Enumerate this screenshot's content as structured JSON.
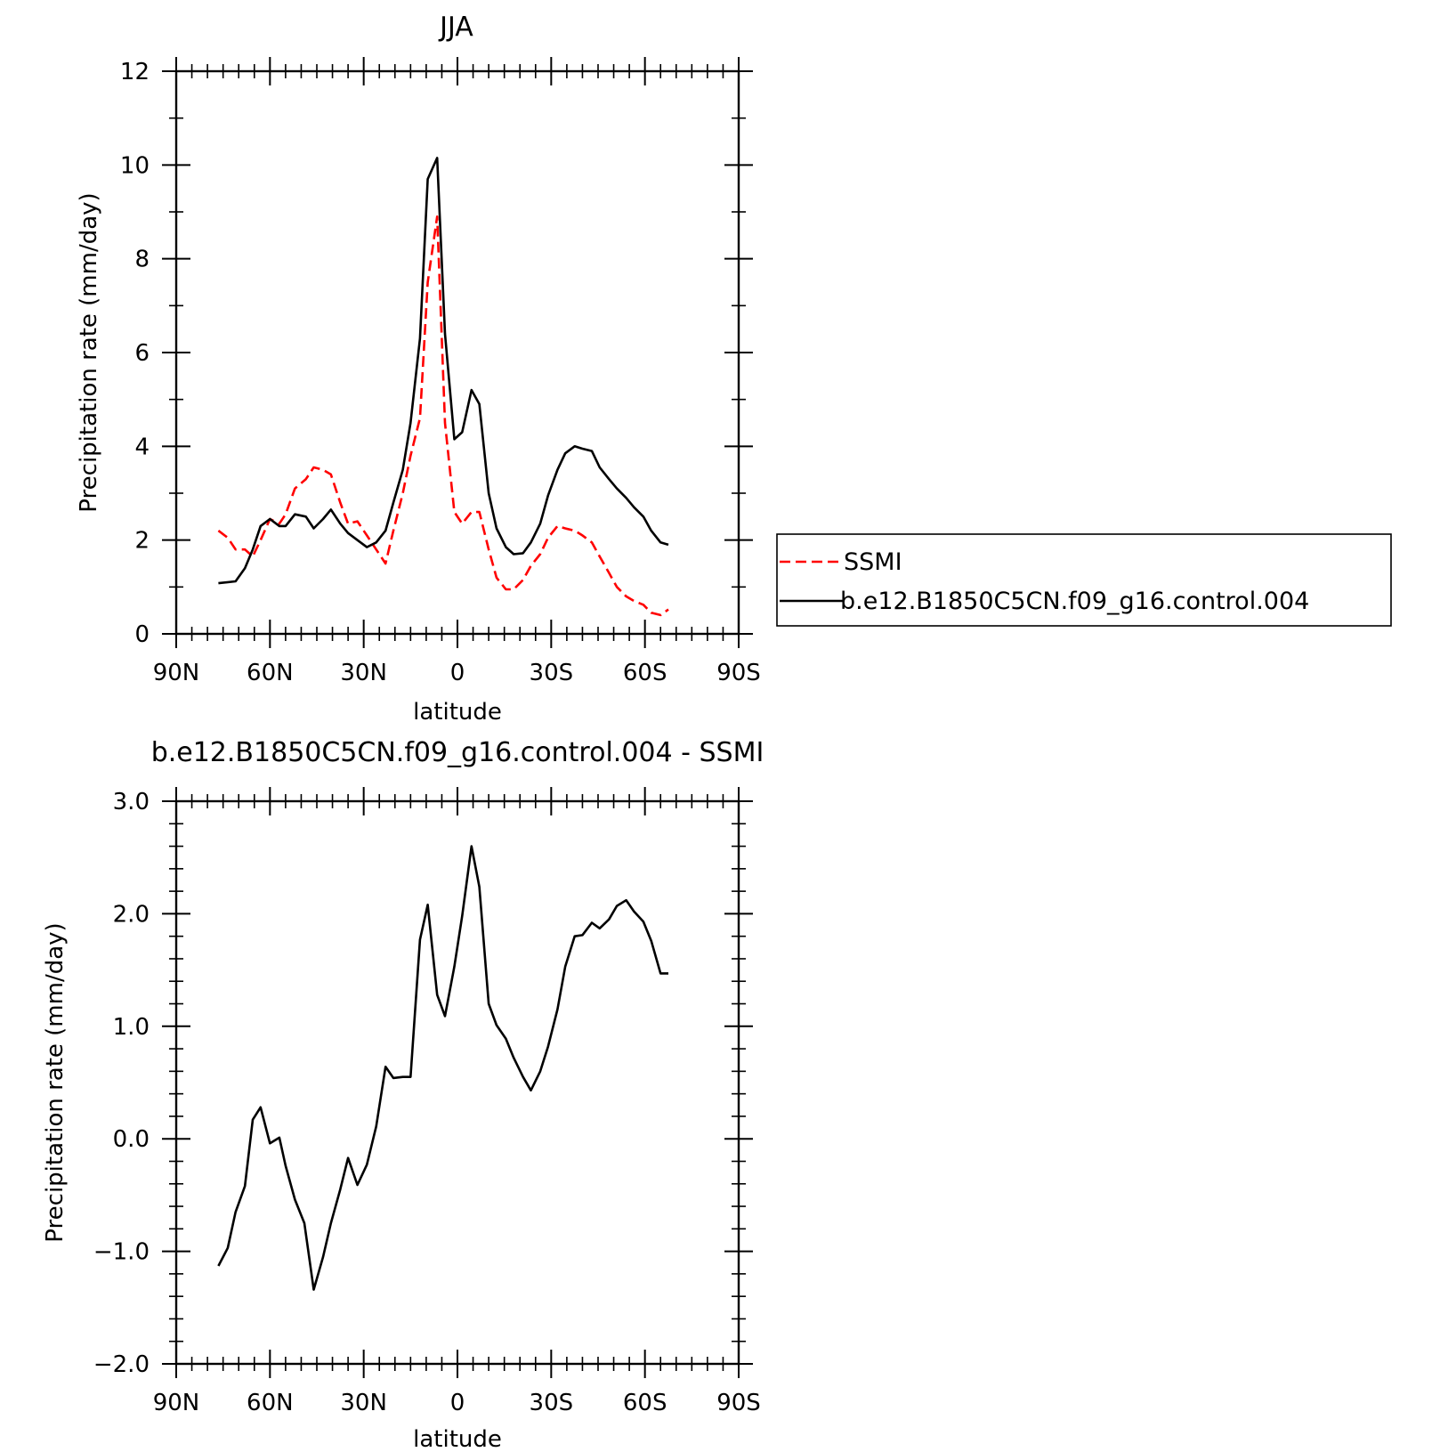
{
  "chart_data": [
    {
      "type": "line",
      "title": "JJA",
      "xlabel": "latitude",
      "ylabel": "Precipitation rate (mm/day)",
      "xlim": [
        90,
        -90
      ],
      "ylim": [
        0,
        12
      ],
      "x_ticks": [
        90,
        60,
        30,
        0,
        -30,
        -60,
        -90
      ],
      "x_tick_labels": [
        "90N",
        "60N",
        "30N",
        "0",
        "30S",
        "60S",
        "90S"
      ],
      "y_ticks": [
        0,
        2,
        4,
        6,
        8,
        10,
        12
      ],
      "y_tick_labels": [
        "0",
        "2",
        "4",
        "6",
        "8",
        "10",
        "12"
      ],
      "legend_position": "right",
      "series": [
        {
          "name": "SSMI",
          "color": "#ff0000",
          "dash": "dashed",
          "x": [
            76.5,
            73.5,
            71,
            68,
            65.5,
            63,
            60,
            57,
            55,
            52,
            48.5,
            46,
            43,
            40.5,
            37.5,
            35,
            32,
            29,
            26,
            23,
            20.5,
            17.5,
            15,
            12,
            9.5,
            6.5,
            4,
            1,
            -1.5,
            -4.5,
            -7,
            -10,
            -12.5,
            -15.5,
            -18,
            -21,
            -23.5,
            -26.5,
            -29,
            -32,
            -34.5,
            -37.5,
            -40,
            -43,
            -45.5,
            -48.5,
            -51,
            -54,
            -56.5,
            -59.5,
            -62,
            -65,
            -67.5
          ],
          "y": [
            2.2,
            2.05,
            1.8,
            1.8,
            1.65,
            2.0,
            2.45,
            2.35,
            2.55,
            3.1,
            3.3,
            3.55,
            3.5,
            3.4,
            2.8,
            2.35,
            2.4,
            2.1,
            1.8,
            1.5,
            2.2,
            3.0,
            3.8,
            4.6,
            7.5,
            8.9,
            4.5,
            2.6,
            2.35,
            2.6,
            2.6,
            1.8,
            1.2,
            0.95,
            0.95,
            1.15,
            1.45,
            1.7,
            2.05,
            2.3,
            2.25,
            2.2,
            2.1,
            1.95,
            1.65,
            1.3,
            1.0,
            0.8,
            0.7,
            0.62,
            0.45,
            0.4,
            0.52
          ]
        },
        {
          "name": "b.e12.B1850C5CN.f09_g16.control.004",
          "color": "#000000",
          "dash": "solid",
          "x": [
            76.5,
            71,
            68,
            65.5,
            63,
            60,
            57,
            55,
            52,
            48.5,
            46,
            43,
            40.5,
            37.5,
            35,
            32,
            29,
            26,
            23,
            20.5,
            17.5,
            15,
            12,
            9.5,
            6.5,
            4,
            1,
            -1.5,
            -4.5,
            -7,
            -10,
            -12.5,
            -15.5,
            -18,
            -21,
            -23.5,
            -26.5,
            -29,
            -32,
            -34.5,
            -37.5,
            -40,
            -43,
            -45.5,
            -48.5,
            -51,
            -54,
            -56.5,
            -59.5,
            -62,
            -65,
            -67.5
          ],
          "y": [
            1.08,
            1.12,
            1.4,
            1.8,
            2.3,
            2.45,
            2.3,
            2.3,
            2.55,
            2.5,
            2.25,
            2.45,
            2.65,
            2.35,
            2.15,
            2.0,
            1.85,
            1.95,
            2.2,
            2.8,
            3.5,
            4.5,
            6.3,
            9.7,
            10.15,
            6.4,
            4.15,
            4.3,
            5.2,
            4.9,
            3.0,
            2.25,
            1.85,
            1.7,
            1.72,
            1.95,
            2.35,
            2.95,
            3.5,
            3.85,
            4.0,
            3.95,
            3.9,
            3.55,
            3.3,
            3.1,
            2.9,
            2.7,
            2.5,
            2.2,
            1.95,
            1.9
          ]
        }
      ]
    },
    {
      "type": "line",
      "title": "b.e12.B1850C5CN.f09_g16.control.004 - SSMI",
      "xlabel": "latitude",
      "ylabel": "Precipitation rate (mm/day)",
      "xlim": [
        90,
        -90
      ],
      "ylim": [
        -2.0,
        3.0
      ],
      "x_ticks": [
        90,
        60,
        30,
        0,
        -30,
        -60,
        -90
      ],
      "x_tick_labels": [
        "90N",
        "60N",
        "30N",
        "0",
        "30S",
        "60S",
        "90S"
      ],
      "y_ticks": [
        -2.0,
        -1.0,
        0.0,
        1.0,
        2.0,
        3.0
      ],
      "y_tick_labels": [
        "−2.0",
        "−1.0",
        "0.0",
        "1.0",
        "2.0",
        "3.0"
      ],
      "series": [
        {
          "name": "",
          "color": "#000000",
          "dash": "solid",
          "x": [
            76.5,
            73.5,
            71,
            68,
            65.5,
            63,
            60,
            57,
            55,
            52,
            49,
            46,
            43,
            40.5,
            37.5,
            35,
            32,
            29,
            26,
            23,
            20.5,
            17.5,
            15,
            12,
            9.5,
            6.5,
            4,
            1,
            -1.5,
            -4.5,
            -7,
            -10,
            -12.5,
            -15.5,
            -18,
            -21,
            -23.5,
            -26.5,
            -29,
            -32,
            -34.5,
            -37.5,
            -40,
            -43,
            -45.5,
            -48.5,
            -51,
            -54,
            -56.5,
            -59.5,
            -62,
            -65,
            -67.5
          ],
          "y": [
            -1.13,
            -0.97,
            -0.65,
            -0.42,
            0.17,
            0.28,
            -0.04,
            0.01,
            -0.24,
            -0.54,
            -0.75,
            -1.34,
            -1.05,
            -0.75,
            -0.45,
            -0.17,
            -0.41,
            -0.23,
            0.11,
            0.64,
            0.54,
            0.55,
            0.55,
            1.77,
            2.08,
            1.28,
            1.09,
            1.53,
            1.98,
            2.6,
            2.24,
            1.2,
            1.01,
            0.89,
            0.72,
            0.55,
            0.43,
            0.6,
            0.82,
            1.15,
            1.53,
            1.8,
            1.81,
            1.92,
            1.87,
            1.95,
            2.07,
            2.12,
            2.02,
            1.93,
            1.76,
            1.47,
            1.47
          ]
        }
      ]
    }
  ]
}
